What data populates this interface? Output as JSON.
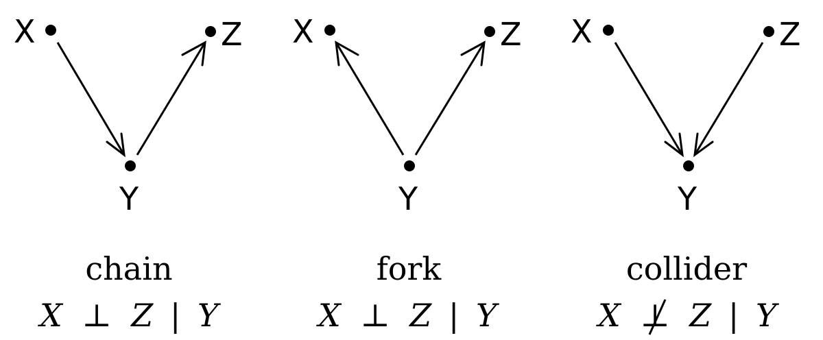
{
  "panels": [
    {
      "id": "chain",
      "nodes": {
        "x": "X",
        "y": "Y",
        "z": "Z"
      },
      "caption": "chain",
      "formula": {
        "left": "X",
        "relation": "⊥",
        "right": "Z",
        "given": "|",
        "cond": "Y",
        "negated": false
      }
    },
    {
      "id": "fork",
      "nodes": {
        "x": "X",
        "y": "Y",
        "z": "Z"
      },
      "caption": "fork",
      "formula": {
        "left": "X",
        "relation": "⊥",
        "right": "Z",
        "given": "|",
        "cond": "Y",
        "negated": false
      }
    },
    {
      "id": "collider",
      "nodes": {
        "x": "X",
        "y": "Y",
        "z": "Z"
      },
      "caption": "collider",
      "formula": {
        "left": "X",
        "relation": "⊥",
        "right": "Z",
        "given": "|",
        "cond": "Y",
        "negated": true
      }
    }
  ],
  "edges": [
    [
      {
        "from": "x",
        "to": "y"
      },
      {
        "from": "y",
        "to": "z"
      }
    ],
    [
      {
        "from": "y",
        "to": "x"
      },
      {
        "from": "y",
        "to": "z"
      }
    ],
    [
      {
        "from": "x",
        "to": "y"
      },
      {
        "from": "z",
        "to": "y"
      }
    ]
  ]
}
